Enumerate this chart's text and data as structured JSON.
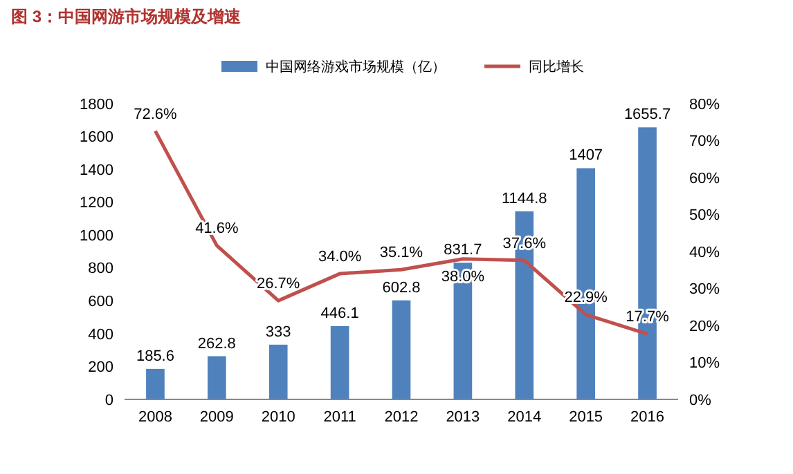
{
  "chart_data": {
    "type": "bar",
    "title": "图 3：中国网游市场规模及增速",
    "categories": [
      "2008",
      "2009",
      "2010",
      "2011",
      "2012",
      "2013",
      "2014",
      "2015",
      "2016"
    ],
    "series": [
      {
        "name": "中国网络游戏市场规模（亿）",
        "color": "#4f81bd",
        "values": [
          185.6,
          262.8,
          333,
          446.1,
          602.8,
          831.7,
          1144.8,
          1407,
          1655.7
        ],
        "value_labels": [
          "185.6",
          "262.8",
          "333",
          "446.1",
          "602.8",
          "831.7",
          "1144.8",
          "1407",
          "1655.7"
        ]
      },
      {
        "name": "同比增长",
        "type": "line",
        "axis": "y2",
        "color": "#c0504d",
        "values": [
          72.6,
          41.6,
          26.7,
          34.0,
          35.1,
          38.0,
          37.6,
          22.9,
          17.7
        ],
        "value_labels": [
          "72.6%",
          "41.6%",
          "26.7%",
          "34.0%",
          "35.1%",
          "38.0%",
          "37.6%",
          "22.9%",
          "17.7%"
        ]
      }
    ],
    "ylim": [
      0,
      1800
    ],
    "yticks": [
      0,
      200,
      400,
      600,
      800,
      1000,
      1200,
      1400,
      1600,
      1800
    ],
    "y2lim": [
      0,
      80
    ],
    "y2ticks": [
      {
        "value": 0,
        "label": "0%"
      },
      {
        "value": 10,
        "label": "10%"
      },
      {
        "value": 20,
        "label": "20%"
      },
      {
        "value": 30,
        "label": "30%"
      },
      {
        "value": 40,
        "label": "40%"
      },
      {
        "value": 50,
        "label": "50%"
      },
      {
        "value": 60,
        "label": "60%"
      },
      {
        "value": 70,
        "label": "70%"
      },
      {
        "value": 80,
        "label": "80%"
      }
    ],
    "legend": "top",
    "grid": false,
    "marker": "none",
    "line_style": "solid"
  }
}
